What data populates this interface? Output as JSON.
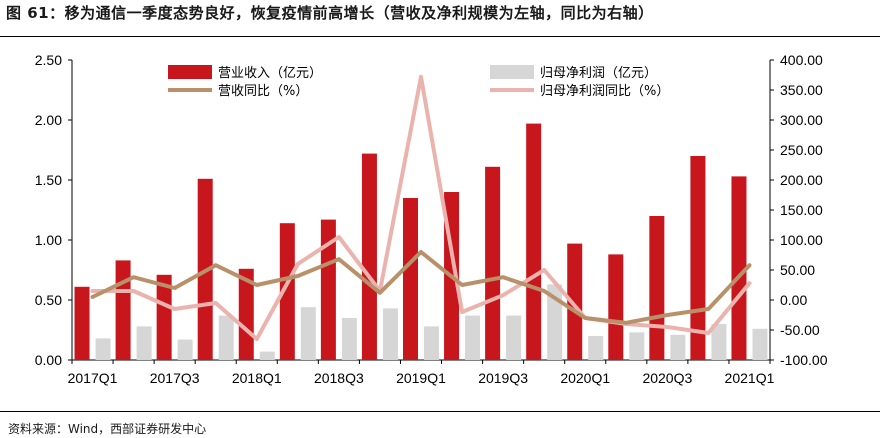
{
  "header": {
    "title": "图 61：移为通信一季度态势良好，恢复疫情前高增长（营收及净利规模为左轴，同比为右轴）"
  },
  "footer": {
    "source": "资料来源：Wind，西部证券研发中心"
  },
  "colors": {
    "revenue_bar": "#c8161d",
    "profit_bar": "#d6d6d6",
    "revenue_yoy_line": "#b8916a",
    "profit_yoy_line": "#eab3ad"
  },
  "chart_data": {
    "type": "bar",
    "categories": [
      "2017Q1",
      "2017Q2",
      "2017Q3",
      "2017Q4",
      "2018Q1",
      "2018Q2",
      "2018Q3",
      "2018Q4",
      "2019Q1",
      "2019Q2",
      "2019Q3",
      "2019Q4",
      "2020Q1",
      "2020Q2",
      "2020Q3",
      "2020Q4",
      "2021Q1"
    ],
    "x_tick_labels": [
      "2017Q1",
      "2017Q3",
      "2018Q1",
      "2018Q3",
      "2019Q1",
      "2019Q3",
      "2020Q1",
      "2020Q3",
      "2021Q1"
    ],
    "x_tick_indices": [
      0,
      2,
      4,
      6,
      8,
      10,
      12,
      14,
      16
    ],
    "left_axis": {
      "min": 0,
      "max": 2.5,
      "ticks": [
        "0.00",
        "0.50",
        "1.00",
        "1.50",
        "2.00",
        "2.50"
      ],
      "tick_values": [
        0,
        0.5,
        1.0,
        1.5,
        2.0,
        2.5
      ]
    },
    "right_axis": {
      "min": -100,
      "max": 400,
      "ticks": [
        "-100.00",
        "-50.00",
        "0.00",
        "50.00",
        "100.00",
        "150.00",
        "200.00",
        "250.00",
        "300.00",
        "350.00",
        "400.00"
      ],
      "tick_values": [
        -100,
        -50,
        0,
        50,
        100,
        150,
        200,
        250,
        300,
        350,
        400
      ]
    },
    "series": [
      {
        "name": "营业收入（亿元）",
        "axis": "left",
        "kind": "bar",
        "values": [
          0.61,
          0.83,
          0.71,
          1.51,
          0.76,
          1.14,
          1.17,
          1.72,
          1.35,
          1.4,
          1.61,
          1.97,
          0.97,
          0.88,
          1.2,
          1.7,
          1.53
        ]
      },
      {
        "name": "归母净利润（亿元）",
        "axis": "left",
        "kind": "bar",
        "values": [
          0.18,
          0.28,
          0.17,
          0.37,
          0.07,
          0.44,
          0.35,
          0.43,
          0.28,
          0.37,
          0.37,
          0.63,
          0.2,
          0.23,
          0.21,
          0.3,
          0.26
        ]
      },
      {
        "name": "营收同比（%）",
        "axis": "right",
        "kind": "line",
        "values": [
          5,
          38,
          20,
          58,
          25,
          40,
          68,
          12,
          80,
          25,
          38,
          15,
          -30,
          -38,
          -25,
          -15,
          58
        ]
      },
      {
        "name": "归母净利润同比（%）",
        "axis": "right",
        "kind": "line",
        "values": [
          15,
          15,
          -15,
          -5,
          -65,
          60,
          105,
          15,
          372,
          -20,
          8,
          50,
          -30,
          -40,
          -45,
          -55,
          28
        ]
      }
    ]
  }
}
